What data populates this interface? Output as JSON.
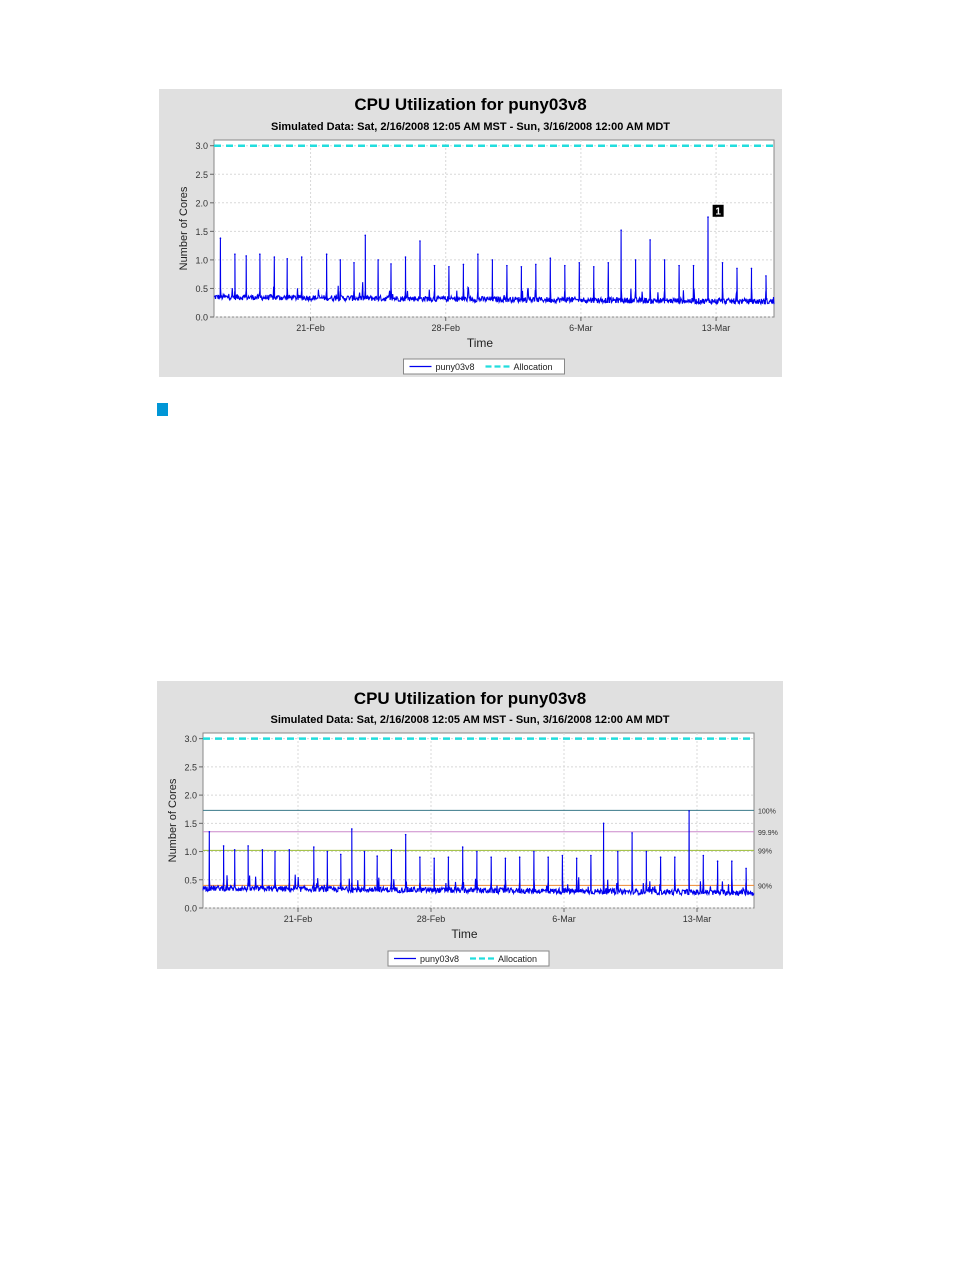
{
  "charts": [
    {
      "title": "CPU Utilization for puny03v8",
      "subtitle": "Simulated Data: Sat, 2/16/2008 12:05 AM MST - Sun, 3/16/2008 12:00 AM MDT",
      "callout_label": "1"
    },
    {
      "title": "CPU Utilization for puny03v8",
      "subtitle": "Simulated Data: Sat, 2/16/2008 12:05 AM MST - Sun, 3/16/2008 12:00 AM MDT"
    }
  ],
  "colors": {
    "series": "#0000ee",
    "allocation": "#22dddd",
    "panel": "#e0e0e0",
    "plot": "#ffffff",
    "callout": "#0096d6"
  },
  "chart_data": [
    {
      "type": "line",
      "title": "CPU Utilization for puny03v8",
      "subtitle": "Simulated Data: Sat, 2/16/2008 12:05 AM MST - Sun, 3/16/2008 12:00 AM MDT",
      "xlabel": "Time",
      "ylabel": "Number of Cores",
      "xlim": [
        "2008-02-16",
        "2008-03-16"
      ],
      "ylim": [
        0,
        3.1
      ],
      "x_ticks": [
        "21-Feb",
        "28-Feb",
        "6-Mar",
        "13-Mar"
      ],
      "x_tick_dates": [
        "2008-02-21",
        "2008-02-28",
        "2008-03-06",
        "2008-03-13"
      ],
      "y_ticks": [
        "0.0",
        "0.5",
        "1.0",
        "1.5",
        "2.0",
        "2.5",
        "3.0"
      ],
      "grid": true,
      "legend_position": "bottom",
      "series": [
        {
          "name": "puny03v8",
          "style": "solid",
          "baseline": 0.3,
          "peaks": [
            {
              "date": "2008-02-16 08:00",
              "value": 1.38
            },
            {
              "date": "2008-02-17 02:00",
              "value": 1.1
            },
            {
              "date": "2008-02-17 16:00",
              "value": 1.07
            },
            {
              "date": "2008-02-18 09:00",
              "value": 1.1
            },
            {
              "date": "2008-02-19 03:00",
              "value": 1.05
            },
            {
              "date": "2008-02-19 19:00",
              "value": 1.02
            },
            {
              "date": "2008-02-20 13:00",
              "value": 1.05
            },
            {
              "date": "2008-02-21 20:00",
              "value": 1.1
            },
            {
              "date": "2008-02-22 13:00",
              "value": 1.0
            },
            {
              "date": "2008-02-23 06:00",
              "value": 0.95
            },
            {
              "date": "2008-02-23 20:00",
              "value": 1.43
            },
            {
              "date": "2008-02-24 12:00",
              "value": 1.0
            },
            {
              "date": "2008-02-25 04:00",
              "value": 0.93
            },
            {
              "date": "2008-02-25 22:00",
              "value": 1.05
            },
            {
              "date": "2008-02-26 16:00",
              "value": 1.33
            },
            {
              "date": "2008-02-27 10:00",
              "value": 0.9
            },
            {
              "date": "2008-02-28 04:00",
              "value": 0.88
            },
            {
              "date": "2008-02-28 22:00",
              "value": 0.92
            },
            {
              "date": "2008-02-29 16:00",
              "value": 1.1
            },
            {
              "date": "2008-03-01 10:00",
              "value": 1.0
            },
            {
              "date": "2008-03-02 04:00",
              "value": 0.9
            },
            {
              "date": "2008-03-02 22:00",
              "value": 0.88
            },
            {
              "date": "2008-03-03 16:00",
              "value": 0.92
            },
            {
              "date": "2008-03-04 10:00",
              "value": 1.03
            },
            {
              "date": "2008-03-05 04:00",
              "value": 0.9
            },
            {
              "date": "2008-03-05 22:00",
              "value": 0.95
            },
            {
              "date": "2008-03-06 16:00",
              "value": 0.88
            },
            {
              "date": "2008-03-07 10:00",
              "value": 0.95
            },
            {
              "date": "2008-03-08 02:00",
              "value": 1.52
            },
            {
              "date": "2008-03-08 20:00",
              "value": 1.0
            },
            {
              "date": "2008-03-09 14:00",
              "value": 1.35
            },
            {
              "date": "2008-03-10 08:00",
              "value": 1.0
            },
            {
              "date": "2008-03-11 02:00",
              "value": 0.9
            },
            {
              "date": "2008-03-11 20:00",
              "value": 0.9
            },
            {
              "date": "2008-03-12 14:00",
              "value": 1.75
            },
            {
              "date": "2008-03-13 08:00",
              "value": 0.95
            },
            {
              "date": "2008-03-14 02:00",
              "value": 0.85
            },
            {
              "date": "2008-03-14 20:00",
              "value": 0.85
            },
            {
              "date": "2008-03-15 14:00",
              "value": 0.72
            }
          ]
        },
        {
          "name": "Allocation",
          "style": "dashed",
          "value": 3.0
        }
      ],
      "annotations": [
        {
          "label": "1",
          "date": "2008-03-12 16:00",
          "value": 1.65
        }
      ]
    },
    {
      "type": "line",
      "title": "CPU Utilization for puny03v8",
      "subtitle": "Simulated Data: Sat, 2/16/2008 12:05 AM MST - Sun, 3/16/2008 12:00 AM MDT",
      "xlabel": "Time",
      "ylabel": "Number of Cores",
      "xlim": [
        "2008-02-16",
        "2008-03-16"
      ],
      "ylim": [
        0,
        3.1
      ],
      "x_ticks": [
        "21-Feb",
        "28-Feb",
        "6-Mar",
        "13-Mar"
      ],
      "x_tick_dates": [
        "2008-02-21",
        "2008-02-28",
        "2008-03-06",
        "2008-03-13"
      ],
      "y_ticks": [
        "0.0",
        "0.5",
        "1.0",
        "1.5",
        "2.0",
        "2.5",
        "3.0"
      ],
      "grid": true,
      "legend_position": "bottom",
      "series": [
        {
          "name": "puny03v8",
          "style": "solid",
          "baseline": 0.3,
          "peaks": [
            {
              "date": "2008-02-16 08:00",
              "value": 1.35
            },
            {
              "date": "2008-02-17 02:00",
              "value": 1.1
            },
            {
              "date": "2008-02-17 16:00",
              "value": 1.03
            },
            {
              "date": "2008-02-18 09:00",
              "value": 1.1
            },
            {
              "date": "2008-02-19 03:00",
              "value": 1.03
            },
            {
              "date": "2008-02-19 19:00",
              "value": 1.0
            },
            {
              "date": "2008-02-20 13:00",
              "value": 1.03
            },
            {
              "date": "2008-02-21 20:00",
              "value": 1.08
            },
            {
              "date": "2008-02-22 13:00",
              "value": 1.0
            },
            {
              "date": "2008-02-23 06:00",
              "value": 0.95
            },
            {
              "date": "2008-02-23 20:00",
              "value": 1.4
            },
            {
              "date": "2008-02-24 12:00",
              "value": 1.0
            },
            {
              "date": "2008-02-25 04:00",
              "value": 0.92
            },
            {
              "date": "2008-02-25 22:00",
              "value": 1.03
            },
            {
              "date": "2008-02-26 16:00",
              "value": 1.3
            },
            {
              "date": "2008-02-27 10:00",
              "value": 0.9
            },
            {
              "date": "2008-02-28 04:00",
              "value": 0.88
            },
            {
              "date": "2008-02-28 22:00",
              "value": 0.9
            },
            {
              "date": "2008-02-29 16:00",
              "value": 1.08
            },
            {
              "date": "2008-03-01 10:00",
              "value": 1.0
            },
            {
              "date": "2008-03-02 04:00",
              "value": 0.9
            },
            {
              "date": "2008-03-02 22:00",
              "value": 0.88
            },
            {
              "date": "2008-03-03 16:00",
              "value": 0.9
            },
            {
              "date": "2008-03-04 10:00",
              "value": 1.0
            },
            {
              "date": "2008-03-05 04:00",
              "value": 0.9
            },
            {
              "date": "2008-03-05 22:00",
              "value": 0.93
            },
            {
              "date": "2008-03-06 16:00",
              "value": 0.88
            },
            {
              "date": "2008-03-07 10:00",
              "value": 0.93
            },
            {
              "date": "2008-03-08 02:00",
              "value": 1.5
            },
            {
              "date": "2008-03-08 20:00",
              "value": 1.0
            },
            {
              "date": "2008-03-09 14:00",
              "value": 1.33
            },
            {
              "date": "2008-03-10 08:00",
              "value": 1.0
            },
            {
              "date": "2008-03-11 02:00",
              "value": 0.9
            },
            {
              "date": "2008-03-11 20:00",
              "value": 0.9
            },
            {
              "date": "2008-03-12 14:00",
              "value": 1.72
            },
            {
              "date": "2008-03-13 08:00",
              "value": 0.93
            },
            {
              "date": "2008-03-14 02:00",
              "value": 0.83
            },
            {
              "date": "2008-03-14 20:00",
              "value": 0.83
            },
            {
              "date": "2008-03-15 14:00",
              "value": 0.7
            }
          ]
        },
        {
          "name": "Allocation",
          "style": "dashed",
          "value": 3.0
        }
      ],
      "percentile_lines": [
        {
          "label": "100%",
          "value": 1.73,
          "color": "#3a7a8a"
        },
        {
          "label": "99.9%",
          "value": 1.35,
          "color": "#cc88cc"
        },
        {
          "label": "99%",
          "value": 1.02,
          "color": "#99bb33"
        },
        {
          "label": "90%",
          "value": 0.4,
          "color": "#ee8833"
        }
      ]
    }
  ]
}
